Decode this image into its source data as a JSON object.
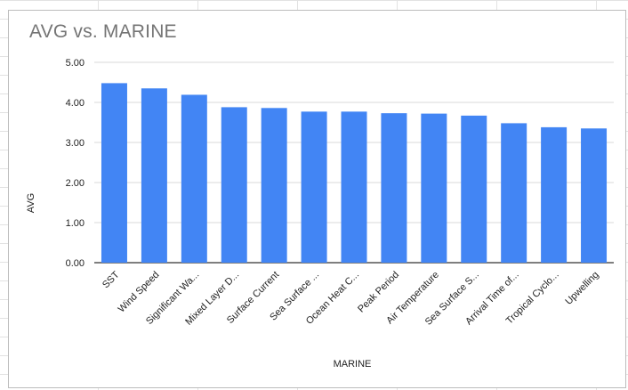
{
  "chart_data": {
    "type": "bar",
    "title": "AVG vs. MARINE",
    "xlabel": "MARINE",
    "ylabel": "AVG",
    "ylim": [
      0,
      5
    ],
    "yticks": [
      "0.00",
      "1.00",
      "2.00",
      "3.00",
      "4.00",
      "5.00"
    ],
    "categories": [
      "SST",
      "Wind Speed",
      "Significant Wa...",
      "Mixed Layer D...",
      "Surface Current",
      "Sea Surface ...",
      "Ocean Heat C...",
      "Peak Period",
      "Air Temperature",
      "Sea Surface S...",
      "Arrival Time of...",
      "Tropical Cyclo...",
      "Upwelling"
    ],
    "values": [
      4.48,
      4.35,
      4.19,
      3.88,
      3.86,
      3.77,
      3.77,
      3.73,
      3.72,
      3.67,
      3.48,
      3.38,
      3.35
    ],
    "bar_color": "#4285f4",
    "grid": true,
    "legend": "none"
  }
}
